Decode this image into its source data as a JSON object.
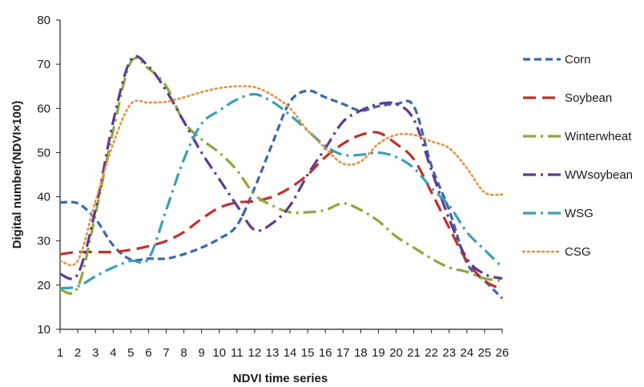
{
  "chart_data": {
    "type": "line",
    "title": "",
    "xlabel": "NDVI time series",
    "ylabel": "Digital number(NDVI×100)",
    "ylim": [
      10,
      80
    ],
    "yticks": [
      10,
      20,
      30,
      40,
      50,
      60,
      70,
      80
    ],
    "grid": false,
    "legend_position": "right",
    "x": [
      1,
      2,
      3,
      4,
      5,
      6,
      7,
      8,
      9,
      10,
      11,
      12,
      13,
      14,
      15,
      16,
      17,
      18,
      19,
      20,
      21,
      22,
      23,
      24,
      25,
      26
    ],
    "series": [
      {
        "name": "Corn",
        "color": "#3a68b0",
        "dash": "dash",
        "values": [
          38.7,
          38.5,
          35,
          29,
          25.8,
          26,
          26,
          27,
          28.5,
          30.5,
          33.5,
          42,
          52,
          61.5,
          64,
          62.5,
          61,
          59.5,
          60.5,
          61,
          60.5,
          47,
          37,
          25,
          21,
          17
        ]
      },
      {
        "name": "Soybean",
        "color": "#c0312d",
        "dash": "longdash",
        "values": [
          27,
          27.5,
          27.5,
          27.5,
          28,
          28.8,
          30,
          32,
          35,
          37.5,
          38.7,
          39,
          40,
          42,
          45,
          49,
          52,
          54,
          54.5,
          52,
          48.5,
          41,
          33,
          25.5,
          21,
          19
        ]
      },
      {
        "name": "Winterwheat",
        "color": "#8aaa3a",
        "dash": "dashdot",
        "values": [
          19,
          19.5,
          36,
          55,
          70.5,
          69,
          65,
          57,
          53,
          50,
          46,
          40.5,
          38,
          36.5,
          36.5,
          37,
          38.5,
          37,
          34.5,
          31,
          28.5,
          26,
          24,
          23,
          21.5,
          21
        ]
      },
      {
        "name": "WWsoybean",
        "color": "#5b3b92",
        "dash": "dashdot",
        "values": [
          22.5,
          22.5,
          37,
          57,
          71,
          69.5,
          64,
          57,
          50,
          44,
          38,
          32.5,
          34,
          38,
          45,
          51,
          57,
          59.5,
          61,
          61,
          57.5,
          46,
          35,
          26,
          22.5,
          21.5
        ]
      },
      {
        "name": "WSG",
        "color": "#3aa0b8",
        "dash": "dashdot",
        "values": [
          19.3,
          19.7,
          22,
          24,
          25.5,
          26,
          37,
          48.5,
          56.5,
          59.5,
          62,
          63.2,
          61.5,
          58.5,
          55,
          51.5,
          49.5,
          49.5,
          50,
          49,
          46.5,
          42,
          38,
          32,
          28,
          24
        ]
      },
      {
        "name": "CSG",
        "color": "#e8903c",
        "dash": "dot",
        "values": [
          25.5,
          25.5,
          39,
          52,
          61,
          61.3,
          61.5,
          62.5,
          63.7,
          64.6,
          65,
          64.8,
          63,
          60,
          55,
          51,
          47.5,
          48,
          52,
          54,
          54,
          52.5,
          51,
          46.5,
          41,
          40.5
        ]
      }
    ]
  }
}
